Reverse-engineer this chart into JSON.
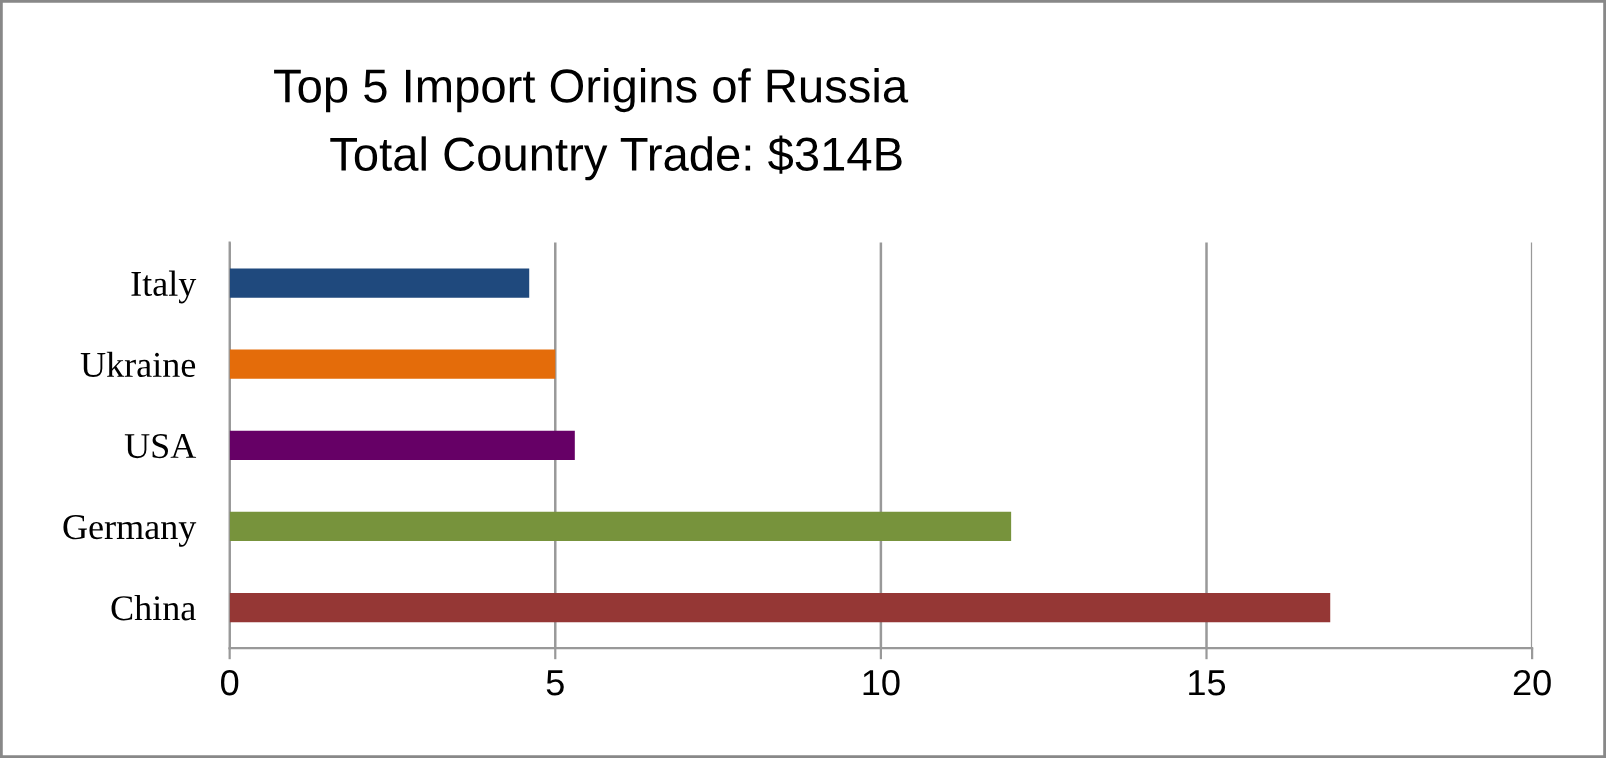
{
  "chart_data": {
    "type": "bar",
    "orientation": "horizontal",
    "title": "Top 5 Import Origins of Russia",
    "subtitle": "Total Country Trade: $314B",
    "categories": [
      "Italy",
      "Ukraine",
      "USA",
      "Germany",
      "China"
    ],
    "values": [
      4.6,
      5.0,
      5.3,
      12.0,
      16.9
    ],
    "colors": [
      "#1f497d",
      "#e46c0a",
      "#660066",
      "#77933c",
      "#953735"
    ],
    "xlim": [
      0,
      20
    ],
    "xticks": [
      0,
      5,
      10,
      15,
      20
    ],
    "grid": "x",
    "legend": false
  }
}
